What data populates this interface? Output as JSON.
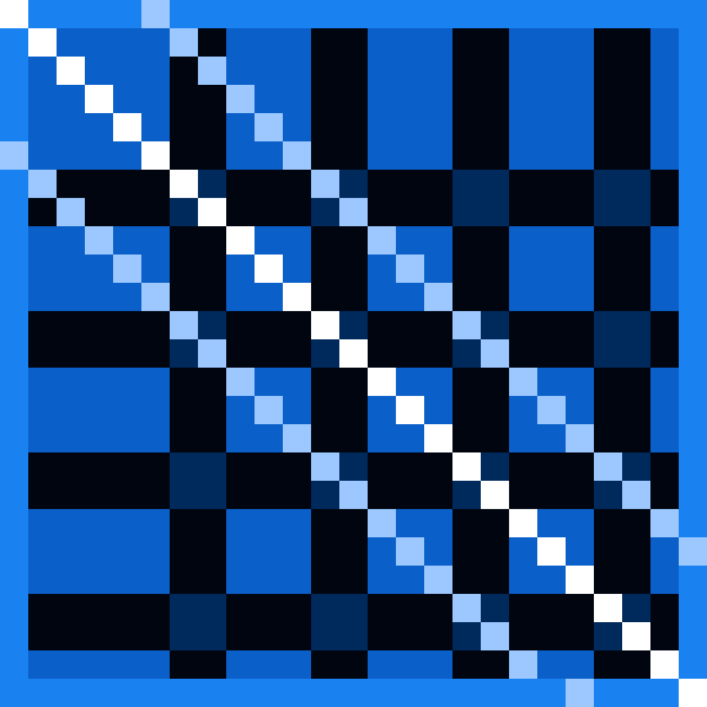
{
  "chart_data": {
    "type": "heatmap",
    "tick_labels": false,
    "cells": [
      [
        100,
        55,
        55,
        55,
        55,
        75,
        55,
        55,
        55,
        55,
        55,
        55,
        55,
        55,
        55,
        55,
        55,
        55,
        55,
        55,
        55,
        55,
        55,
        55,
        55
      ],
      [
        55,
        100,
        45,
        45,
        45,
        45,
        75,
        20,
        45,
        45,
        45,
        20,
        20,
        45,
        45,
        45,
        20,
        20,
        45,
        45,
        45,
        20,
        20,
        45,
        55
      ],
      [
        55,
        45,
        100,
        45,
        45,
        45,
        20,
        75,
        45,
        45,
        45,
        20,
        20,
        45,
        45,
        45,
        20,
        20,
        45,
        45,
        45,
        20,
        20,
        45,
        55
      ],
      [
        55,
        45,
        45,
        100,
        45,
        45,
        20,
        20,
        75,
        45,
        45,
        20,
        20,
        45,
        45,
        45,
        20,
        20,
        45,
        45,
        45,
        20,
        20,
        45,
        55
      ],
      [
        55,
        45,
        45,
        45,
        100,
        45,
        20,
        20,
        45,
        75,
        45,
        20,
        20,
        45,
        45,
        45,
        20,
        20,
        45,
        45,
        45,
        20,
        20,
        45,
        55
      ],
      [
        75,
        45,
        45,
        45,
        45,
        100,
        20,
        20,
        45,
        45,
        75,
        20,
        20,
        45,
        45,
        45,
        20,
        20,
        45,
        45,
        45,
        20,
        20,
        45,
        55
      ],
      [
        55,
        75,
        20,
        20,
        20,
        20,
        100,
        30,
        20,
        20,
        20,
        75,
        30,
        20,
        20,
        20,
        30,
        30,
        20,
        20,
        20,
        30,
        30,
        20,
        55
      ],
      [
        55,
        20,
        75,
        20,
        20,
        20,
        30,
        100,
        20,
        20,
        20,
        30,
        75,
        20,
        20,
        20,
        30,
        30,
        20,
        20,
        20,
        30,
        30,
        20,
        55
      ],
      [
        55,
        45,
        45,
        75,
        45,
        45,
        20,
        20,
        100,
        45,
        45,
        20,
        20,
        75,
        45,
        45,
        20,
        20,
        45,
        45,
        45,
        20,
        20,
        45,
        55
      ],
      [
        55,
        45,
        45,
        45,
        75,
        45,
        20,
        20,
        45,
        100,
        45,
        20,
        20,
        45,
        75,
        45,
        20,
        20,
        45,
        45,
        45,
        20,
        20,
        45,
        55
      ],
      [
        55,
        45,
        45,
        45,
        45,
        75,
        20,
        20,
        45,
        45,
        100,
        20,
        20,
        45,
        45,
        75,
        20,
        20,
        45,
        45,
        45,
        20,
        20,
        45,
        55
      ],
      [
        55,
        20,
        20,
        20,
        20,
        20,
        75,
        30,
        20,
        20,
        20,
        100,
        30,
        20,
        20,
        20,
        75,
        30,
        20,
        20,
        20,
        30,
        30,
        20,
        55
      ],
      [
        55,
        20,
        20,
        20,
        20,
        20,
        30,
        75,
        20,
        20,
        20,
        30,
        100,
        20,
        20,
        20,
        30,
        75,
        20,
        20,
        20,
        30,
        30,
        20,
        55
      ],
      [
        55,
        45,
        45,
        45,
        45,
        45,
        20,
        20,
        75,
        45,
        45,
        20,
        20,
        100,
        45,
        45,
        20,
        20,
        75,
        45,
        45,
        20,
        20,
        45,
        55
      ],
      [
        55,
        45,
        45,
        45,
        45,
        45,
        20,
        20,
        45,
        75,
        45,
        20,
        20,
        45,
        100,
        45,
        20,
        20,
        45,
        75,
        45,
        20,
        20,
        45,
        55
      ],
      [
        55,
        45,
        45,
        45,
        45,
        45,
        20,
        20,
        45,
        45,
        75,
        20,
        20,
        45,
        45,
        100,
        20,
        20,
        45,
        45,
        75,
        20,
        20,
        45,
        55
      ],
      [
        55,
        20,
        20,
        20,
        20,
        20,
        30,
        30,
        20,
        20,
        20,
        75,
        30,
        20,
        20,
        20,
        100,
        30,
        20,
        20,
        20,
        75,
        30,
        20,
        55
      ],
      [
        55,
        20,
        20,
        20,
        20,
        20,
        30,
        30,
        20,
        20,
        20,
        30,
        75,
        20,
        20,
        20,
        30,
        100,
        20,
        20,
        20,
        30,
        75,
        20,
        55
      ],
      [
        55,
        45,
        45,
        45,
        45,
        45,
        20,
        20,
        45,
        45,
        45,
        20,
        20,
        75,
        45,
        45,
        20,
        20,
        100,
        45,
        45,
        20,
        20,
        75,
        55
      ],
      [
        55,
        45,
        45,
        45,
        45,
        45,
        20,
        20,
        45,
        45,
        45,
        20,
        20,
        45,
        75,
        45,
        20,
        20,
        45,
        100,
        45,
        20,
        20,
        45,
        75
      ],
      [
        55,
        45,
        45,
        45,
        45,
        45,
        20,
        20,
        45,
        45,
        45,
        20,
        20,
        45,
        45,
        75,
        20,
        20,
        45,
        45,
        100,
        20,
        20,
        45,
        55
      ],
      [
        55,
        20,
        20,
        20,
        20,
        20,
        30,
        30,
        20,
        20,
        20,
        30,
        30,
        20,
        20,
        20,
        75,
        30,
        20,
        20,
        20,
        100,
        30,
        20,
        55
      ],
      [
        55,
        20,
        20,
        20,
        20,
        20,
        30,
        30,
        20,
        20,
        20,
        30,
        30,
        20,
        20,
        20,
        30,
        75,
        20,
        20,
        20,
        30,
        100,
        20,
        55
      ],
      [
        55,
        45,
        45,
        45,
        45,
        45,
        20,
        20,
        45,
        45,
        45,
        20,
        20,
        45,
        45,
        45,
        20,
        20,
        75,
        45,
        45,
        20,
        20,
        100,
        55
      ],
      [
        55,
        55,
        55,
        55,
        55,
        55,
        55,
        55,
        55,
        55,
        55,
        55,
        55,
        55,
        55,
        55,
        55,
        55,
        55,
        55,
        75,
        55,
        55,
        55,
        100
      ]
    ]
  }
}
